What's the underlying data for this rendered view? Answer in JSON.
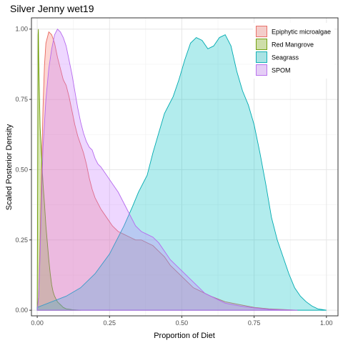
{
  "chart_data": {
    "type": "area",
    "title": "Silver Jenny wet19",
    "xlabel": "Proportion of Diet",
    "ylabel": "Scaled Posterior Density",
    "xlim": [
      -0.02,
      1.04
    ],
    "ylim": [
      -0.02,
      1.04
    ],
    "x_ticks": [
      0.0,
      0.25,
      0.5,
      0.75,
      1.0
    ],
    "x_tick_labels": [
      "0.00",
      "0.25",
      "0.50",
      "0.75",
      "1.00"
    ],
    "y_ticks": [
      0.0,
      0.25,
      0.5,
      0.75,
      1.0
    ],
    "y_tick_labels": [
      "0.00",
      "0.25",
      "0.50",
      "0.75",
      "1.00"
    ],
    "grid": true,
    "legend_position": "top-right",
    "series": [
      {
        "name": "Epiphytic microalgae",
        "fill": "#f8766d",
        "stroke": "#e8675e",
        "points": [
          [
            0.0,
            0.0
          ],
          [
            0.005,
            0.05
          ],
          [
            0.01,
            0.25
          ],
          [
            0.015,
            0.5
          ],
          [
            0.02,
            0.72
          ],
          [
            0.025,
            0.87
          ],
          [
            0.03,
            0.95
          ],
          [
            0.04,
            0.99
          ],
          [
            0.05,
            0.98
          ],
          [
            0.06,
            0.95
          ],
          [
            0.07,
            0.9
          ],
          [
            0.08,
            0.86
          ],
          [
            0.09,
            0.82
          ],
          [
            0.1,
            0.8
          ],
          [
            0.11,
            0.76
          ],
          [
            0.12,
            0.71
          ],
          [
            0.13,
            0.66
          ],
          [
            0.14,
            0.62
          ],
          [
            0.15,
            0.59
          ],
          [
            0.16,
            0.56
          ],
          [
            0.17,
            0.52
          ],
          [
            0.18,
            0.47
          ],
          [
            0.19,
            0.43
          ],
          [
            0.2,
            0.4
          ],
          [
            0.22,
            0.36
          ],
          [
            0.24,
            0.33
          ],
          [
            0.26,
            0.3
          ],
          [
            0.28,
            0.28
          ],
          [
            0.3,
            0.27
          ],
          [
            0.32,
            0.26
          ],
          [
            0.34,
            0.25
          ],
          [
            0.36,
            0.25
          ],
          [
            0.38,
            0.24
          ],
          [
            0.4,
            0.23
          ],
          [
            0.42,
            0.21
          ],
          [
            0.44,
            0.19
          ],
          [
            0.46,
            0.16
          ],
          [
            0.48,
            0.14
          ],
          [
            0.5,
            0.12
          ],
          [
            0.52,
            0.1
          ],
          [
            0.54,
            0.08
          ],
          [
            0.56,
            0.07
          ],
          [
            0.6,
            0.05
          ],
          [
            0.65,
            0.03
          ],
          [
            0.7,
            0.02
          ],
          [
            0.75,
            0.01
          ],
          [
            0.8,
            0.005
          ],
          [
            0.9,
            0.0
          ]
        ]
      },
      {
        "name": "Red Mangrove",
        "fill": "#7cae00",
        "stroke": "#6a9a00",
        "points": [
          [
            0.0,
            0.0
          ],
          [
            0.0015,
            0.45
          ],
          [
            0.003,
            0.98
          ],
          [
            0.004,
            1.0
          ],
          [
            0.005,
            0.9
          ],
          [
            0.008,
            0.75
          ],
          [
            0.01,
            0.65
          ],
          [
            0.015,
            0.55
          ],
          [
            0.02,
            0.45
          ],
          [
            0.025,
            0.38
          ],
          [
            0.03,
            0.3
          ],
          [
            0.035,
            0.24
          ],
          [
            0.04,
            0.18
          ],
          [
            0.045,
            0.13
          ],
          [
            0.05,
            0.09
          ],
          [
            0.055,
            0.065
          ],
          [
            0.06,
            0.05
          ],
          [
            0.065,
            0.04
          ],
          [
            0.07,
            0.03
          ],
          [
            0.075,
            0.025
          ],
          [
            0.08,
            0.02
          ],
          [
            0.085,
            0.015
          ],
          [
            0.09,
            0.01
          ],
          [
            0.1,
            0.005
          ],
          [
            0.12,
            0.002
          ],
          [
            0.15,
            0.0
          ]
        ]
      },
      {
        "name": "Seagrass",
        "fill": "#00bfc4",
        "stroke": "#00aab0",
        "points": [
          [
            0.0,
            0.0
          ],
          [
            0.0,
            0.01
          ],
          [
            0.05,
            0.03
          ],
          [
            0.1,
            0.05
          ],
          [
            0.15,
            0.08
          ],
          [
            0.2,
            0.13
          ],
          [
            0.25,
            0.2
          ],
          [
            0.3,
            0.3
          ],
          [
            0.33,
            0.37
          ],
          [
            0.35,
            0.42
          ],
          [
            0.38,
            0.48
          ],
          [
            0.4,
            0.56
          ],
          [
            0.42,
            0.63
          ],
          [
            0.44,
            0.7
          ],
          [
            0.45,
            0.72
          ],
          [
            0.47,
            0.76
          ],
          [
            0.49,
            0.82
          ],
          [
            0.51,
            0.89
          ],
          [
            0.53,
            0.95
          ],
          [
            0.55,
            0.97
          ],
          [
            0.57,
            0.96
          ],
          [
            0.59,
            0.93
          ],
          [
            0.61,
            0.94
          ],
          [
            0.63,
            0.97
          ],
          [
            0.65,
            0.98
          ],
          [
            0.67,
            0.94
          ],
          [
            0.69,
            0.85
          ],
          [
            0.71,
            0.78
          ],
          [
            0.73,
            0.73
          ],
          [
            0.75,
            0.66
          ],
          [
            0.77,
            0.56
          ],
          [
            0.79,
            0.45
          ],
          [
            0.81,
            0.33
          ],
          [
            0.83,
            0.25
          ],
          [
            0.85,
            0.19
          ],
          [
            0.87,
            0.13
          ],
          [
            0.89,
            0.08
          ],
          [
            0.91,
            0.05
          ],
          [
            0.93,
            0.03
          ],
          [
            0.95,
            0.015
          ],
          [
            0.97,
            0.005
          ],
          [
            1.0,
            0.0
          ]
        ]
      },
      {
        "name": "SPOM",
        "fill": "#c77cff",
        "stroke": "#b56aee",
        "points": [
          [
            0.0,
            0.0
          ],
          [
            0.005,
            0.05
          ],
          [
            0.01,
            0.2
          ],
          [
            0.015,
            0.4
          ],
          [
            0.02,
            0.58
          ],
          [
            0.03,
            0.75
          ],
          [
            0.04,
            0.86
          ],
          [
            0.05,
            0.93
          ],
          [
            0.06,
            0.98
          ],
          [
            0.07,
            1.0
          ],
          [
            0.08,
            0.99
          ],
          [
            0.09,
            0.97
          ],
          [
            0.1,
            0.94
          ],
          [
            0.11,
            0.89
          ],
          [
            0.12,
            0.84
          ],
          [
            0.13,
            0.78
          ],
          [
            0.14,
            0.72
          ],
          [
            0.15,
            0.67
          ],
          [
            0.16,
            0.63
          ],
          [
            0.17,
            0.6
          ],
          [
            0.18,
            0.58
          ],
          [
            0.19,
            0.57
          ],
          [
            0.2,
            0.54
          ],
          [
            0.21,
            0.52
          ],
          [
            0.22,
            0.51
          ],
          [
            0.24,
            0.48
          ],
          [
            0.26,
            0.45
          ],
          [
            0.28,
            0.42
          ],
          [
            0.3,
            0.38
          ],
          [
            0.32,
            0.34
          ],
          [
            0.34,
            0.3
          ],
          [
            0.36,
            0.28
          ],
          [
            0.38,
            0.27
          ],
          [
            0.4,
            0.26
          ],
          [
            0.42,
            0.24
          ],
          [
            0.44,
            0.21
          ],
          [
            0.46,
            0.18
          ],
          [
            0.48,
            0.16
          ],
          [
            0.5,
            0.14
          ],
          [
            0.52,
            0.12
          ],
          [
            0.54,
            0.1
          ],
          [
            0.56,
            0.08
          ],
          [
            0.58,
            0.06
          ],
          [
            0.6,
            0.05
          ],
          [
            0.65,
            0.025
          ],
          [
            0.7,
            0.015
          ],
          [
            0.75,
            0.008
          ],
          [
            0.8,
            0.003
          ],
          [
            0.85,
            0.001
          ],
          [
            0.9,
            0.0
          ]
        ]
      }
    ]
  }
}
